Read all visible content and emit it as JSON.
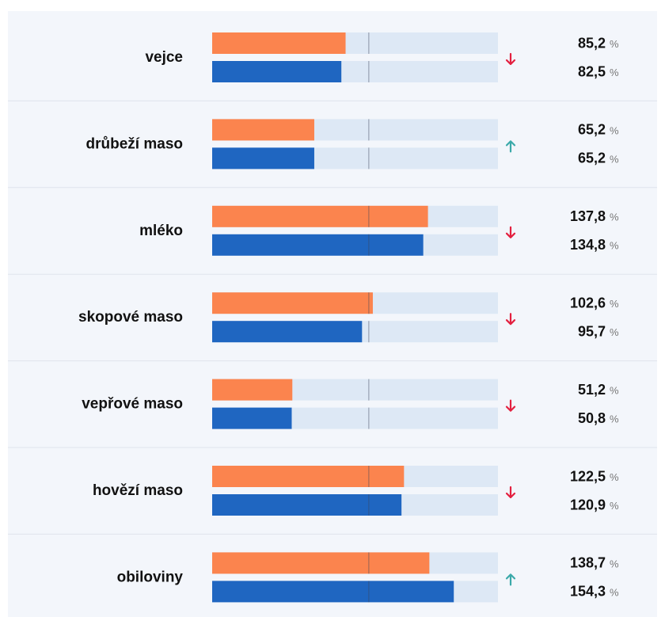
{
  "chart_data": {
    "type": "bar",
    "orientation": "horizontal",
    "categories": [
      "vejce",
      "drůbeží maso",
      "mléko",
      "skopové maso",
      "vepřové maso",
      "hovězí maso",
      "obiloviny"
    ],
    "series": [
      {
        "color": "#fb844e",
        "values": [
          85.2,
          65.2,
          137.8,
          102.6,
          51.2,
          122.5,
          138.7
        ],
        "value_labels": [
          "85,2",
          "65,2",
          "137,8",
          "102,6",
          "51,2",
          "122,5",
          "138,7"
        ]
      },
      {
        "color": "#1f66c1",
        "values": [
          82.5,
          65.2,
          134.8,
          95.7,
          50.8,
          120.9,
          154.3
        ],
        "value_labels": [
          "82,5",
          "65,2",
          "134,8",
          "95,7",
          "50,8",
          "120,9",
          "154,3"
        ]
      }
    ],
    "trend": [
      "down",
      "up",
      "down",
      "down",
      "down",
      "down",
      "up"
    ],
    "trend_colors": {
      "down": "#e3203f",
      "up": "#3aa9a9"
    },
    "unit": "%",
    "xlim": [
      0,
      182.5
    ],
    "reference_line": 100,
    "track_color": "#dde8f5"
  }
}
